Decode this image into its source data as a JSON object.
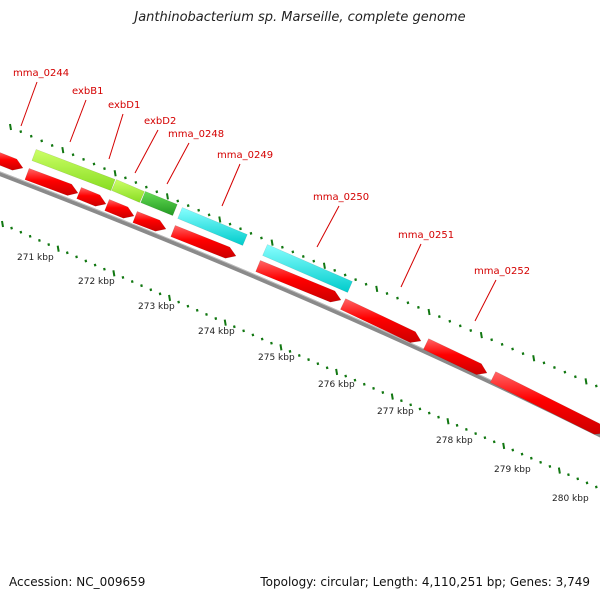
{
  "title": "Janthinobacterium sp. Marseille, complete genome",
  "footer": {
    "accession": "Accession: NC_009659",
    "summary": "Topology: circular; Length: 4,110,251 bp; Genes: 3,749"
  },
  "colors": {
    "cds_forward": "#ff0000",
    "gene_green_light": "#99ee33",
    "gene_green_dark": "#33bb33",
    "gene_cyan": "#00eeee",
    "backbone": "#8a8a8a",
    "ticks": "#117711",
    "label_red": "#d40000"
  },
  "kbp_labels": [
    "271 kbp",
    "272 kbp",
    "273 kbp",
    "274 kbp",
    "275 kbp",
    "276 kbp",
    "277 kbp",
    "278 kbp",
    "279 kbp",
    "280 kbp"
  ],
  "gene_labels": [
    "mma_0244",
    "exbB1",
    "exbD1",
    "exbD2",
    "mma_0248",
    "mma_0249",
    "mma_0250",
    "mma_0251",
    "mma_0252"
  ]
}
